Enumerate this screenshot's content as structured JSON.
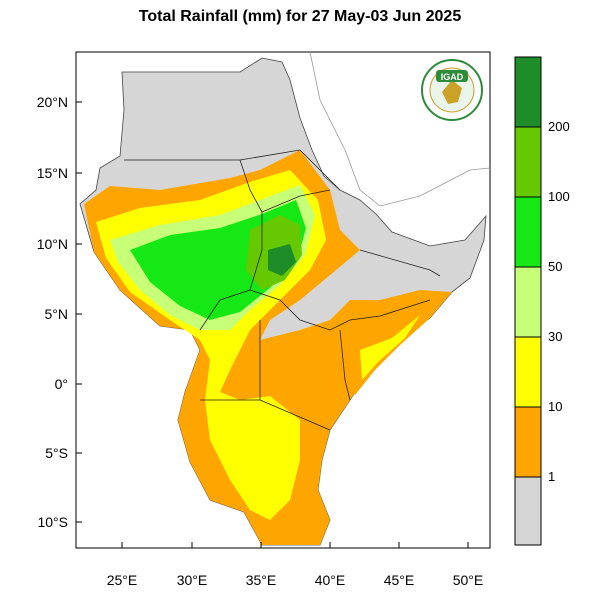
{
  "title": "Total Rainfall (mm) for 27 May-03 Jun 2025",
  "lat_labels": [
    "20°N",
    "15°N",
    "10°N",
    "5°N",
    "0°",
    "5°S",
    "10°S"
  ],
  "lon_labels": [
    "25°E",
    "30°E",
    "35°E",
    "40°E",
    "45°E",
    "50°E"
  ],
  "logo_text": "IGAD",
  "colorbar": {
    "labels": [
      "200",
      "100",
      "50",
      "30",
      "10",
      "1"
    ],
    "colors": [
      "#1f8c2a",
      "#66c800",
      "#16e816",
      "#c8ff78",
      "#ffff00",
      "#ffa500",
      "#d6d6d6"
    ]
  },
  "legend_colors": {
    "background_land": "#d6d6d6",
    "ocean": "#ffffff"
  }
}
